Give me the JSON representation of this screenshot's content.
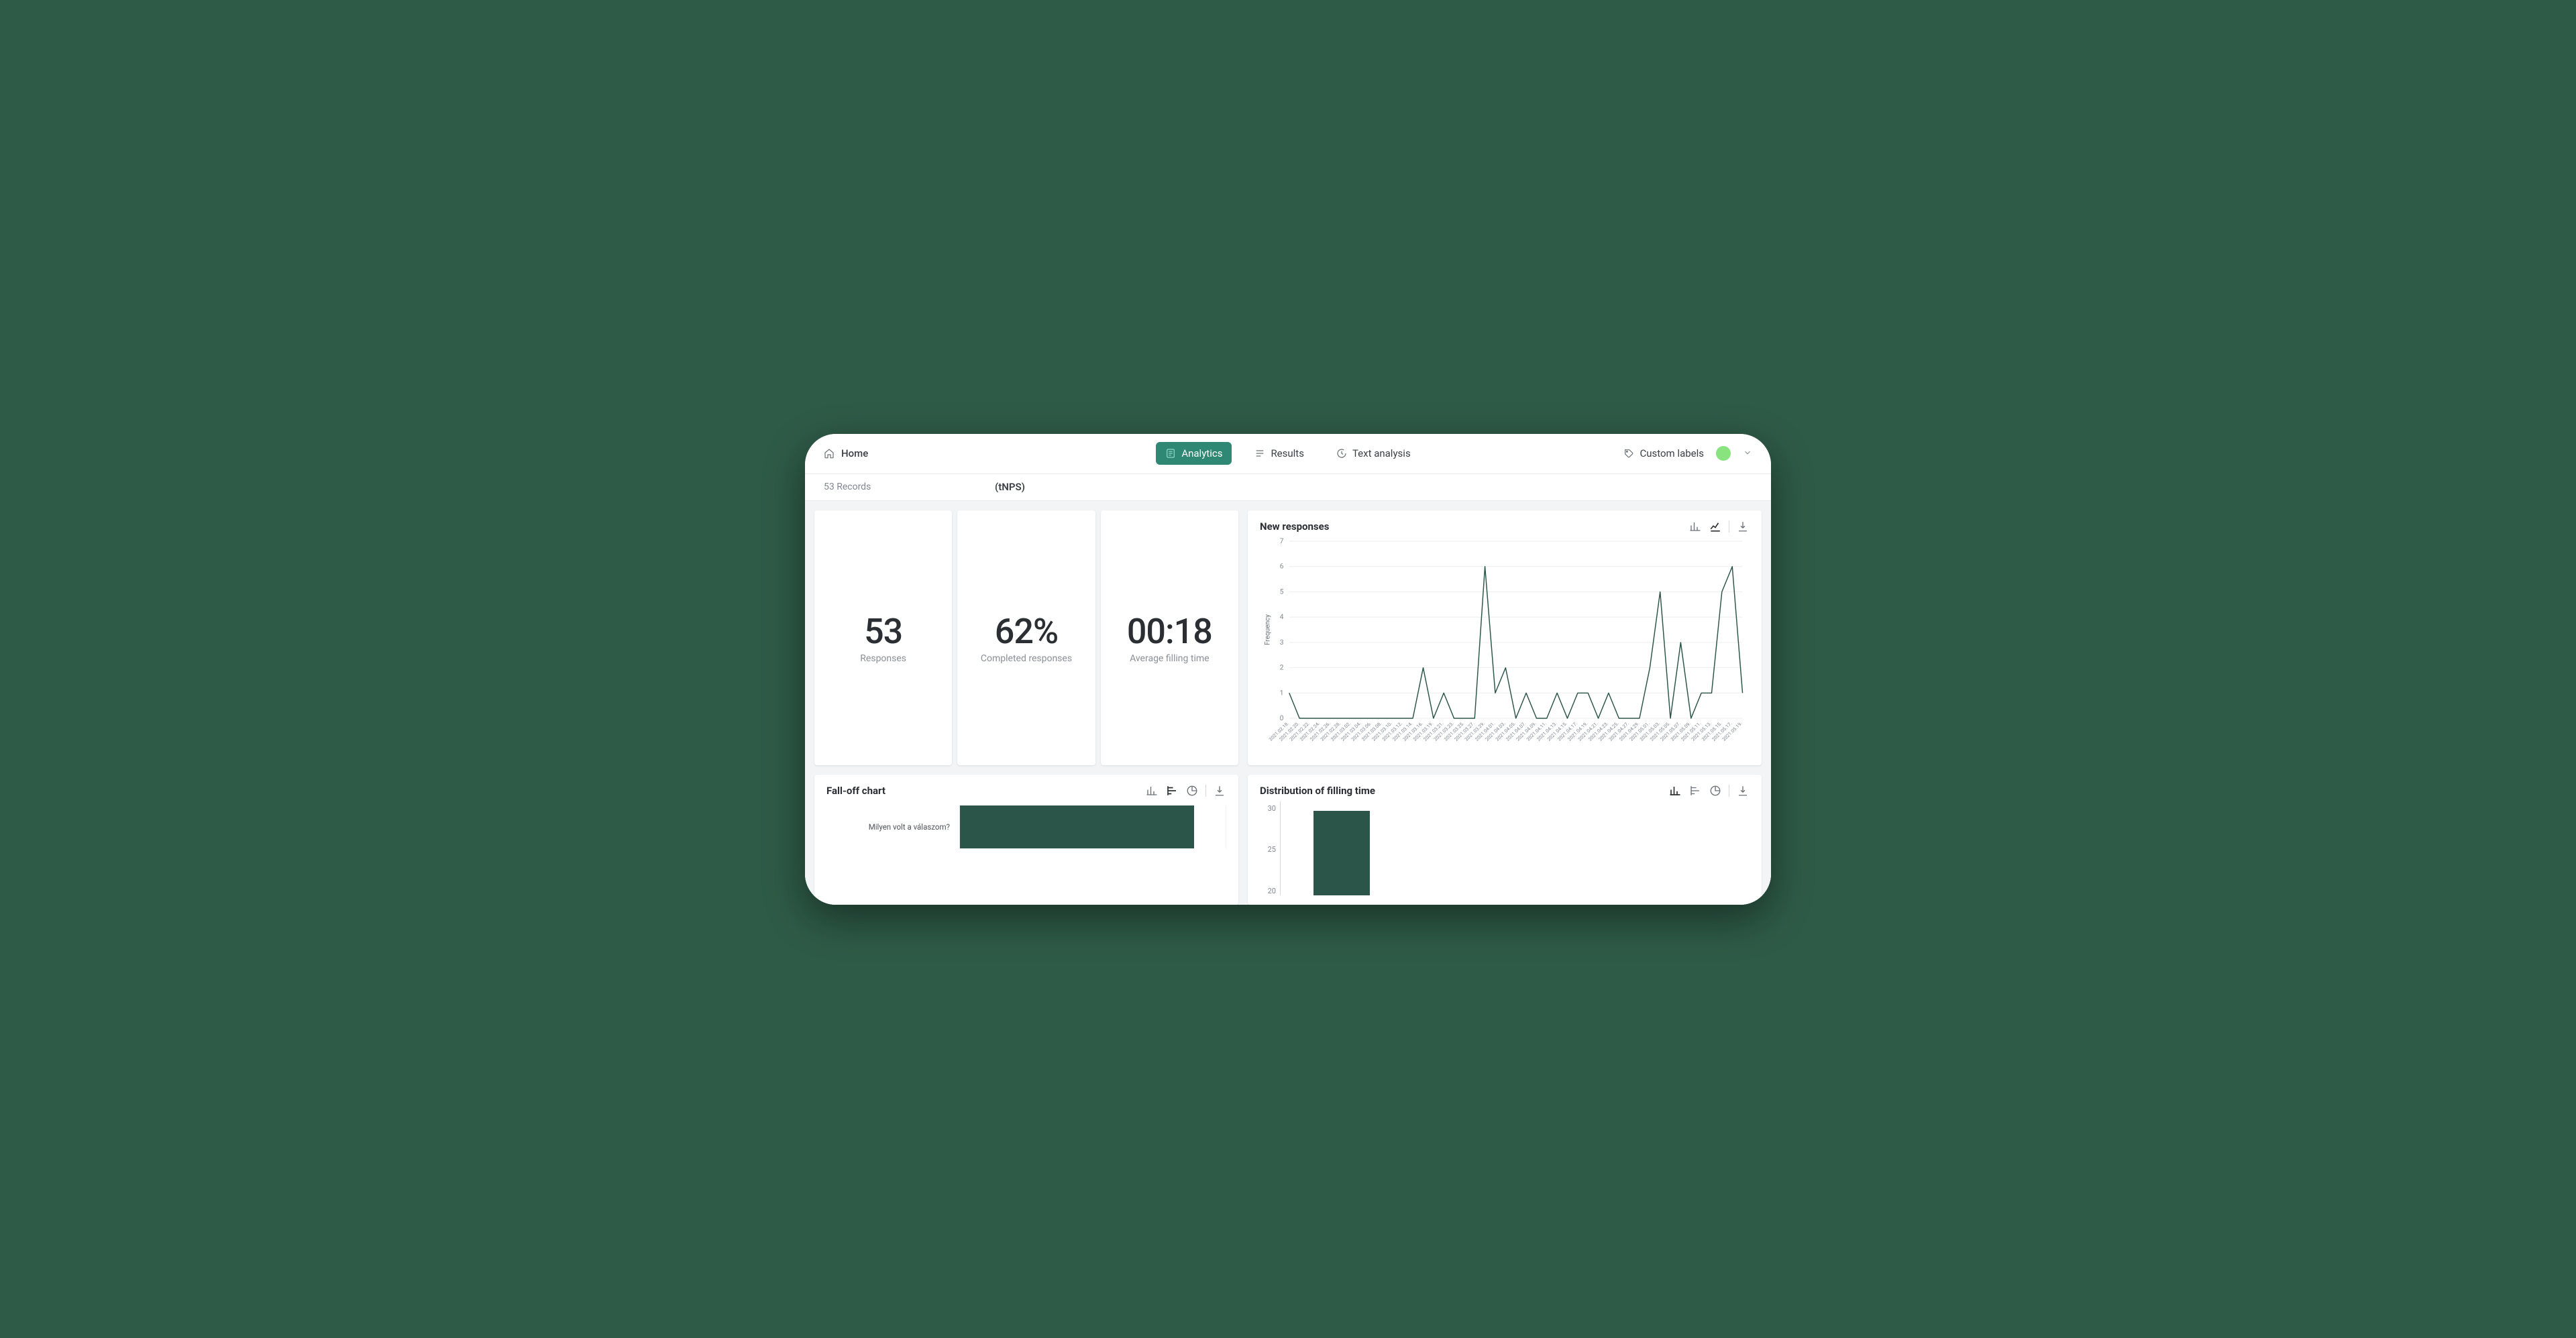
{
  "colors": {
    "accent": "#2f8873",
    "chart_line": "#2c5549",
    "bar_fill": "#2c5549",
    "background": "#ffffff",
    "page_bg": "#f3f4f6",
    "outer_bg": "#2e5b47",
    "text_primary": "#2b2f33",
    "text_secondary": "#8a9096",
    "grid": "#eceeef",
    "avatar": "#89e37f"
  },
  "nav": {
    "home": "Home",
    "tabs": [
      {
        "id": "analytics",
        "label": "Analytics",
        "active": true
      },
      {
        "id": "results",
        "label": "Results",
        "active": false
      },
      {
        "id": "text-analysis",
        "label": "Text analysis",
        "active": false
      }
    ],
    "custom_labels": "Custom labels"
  },
  "subheader": {
    "records": "53 Records",
    "title": "(tNPS)"
  },
  "stats": [
    {
      "value": "53",
      "label": "Responses"
    },
    {
      "value": "62%",
      "label": "Completed responses"
    },
    {
      "value": "00:18",
      "label": "Average filling time"
    }
  ],
  "new_responses": {
    "title": "New responses",
    "y_label": "Frequency",
    "type": "line",
    "ylim": [
      0,
      7
    ],
    "ytick_step": 1,
    "line_color": "#2c5549",
    "line_width": 1.4,
    "x_labels": [
      "2021.02.18.",
      "2021.02.20.",
      "2021.02.22.",
      "2021.02.24.",
      "2021.02.26.",
      "2021.02.28.",
      "2021.03.02.",
      "2021.03.04.",
      "2021.03.06.",
      "2021.03.08.",
      "2021.03.10.",
      "2021.03.12.",
      "2021.03.14.",
      "2021.03.16.",
      "2021.03.19.",
      "2021.03.21.",
      "2021.03.23.",
      "2021.03.25.",
      "2021.03.27.",
      "2021.03.29.",
      "2021.04.01.",
      "2021.04.03.",
      "2021.04.05.",
      "2021.04.07.",
      "2021.04.09.",
      "2021.04.11.",
      "2021.04.13.",
      "2021.04.15.",
      "2021.04.17.",
      "2021.04.19.",
      "2021.04.21.",
      "2021.04.23.",
      "2021.04.25.",
      "2021.04.27.",
      "2021.04.29.",
      "2021.05.01.",
      "2021.05.03.",
      "2021.05.05.",
      "2021.05.07.",
      "2021.05.09.",
      "2021.05.11.",
      "2021.05.13.",
      "2021.05.15.",
      "2021.05.17.",
      "2021.05.19."
    ],
    "values": [
      1,
      0,
      0,
      0,
      0,
      0,
      0,
      0,
      0,
      0,
      0,
      0,
      0,
      2,
      0,
      1,
      0,
      0,
      0,
      6,
      1,
      2,
      0,
      1,
      0,
      0,
      1,
      0,
      1,
      1,
      0,
      1,
      0,
      0,
      0,
      2,
      5,
      0,
      3,
      0,
      1,
      1,
      5,
      6,
      1
    ]
  },
  "falloff": {
    "title": "Fall-off chart",
    "type": "bar-horizontal",
    "bar_color": "#2c5549",
    "rows": [
      {
        "label": "Milyen volt a válaszom?",
        "value_ratio": 0.88
      }
    ]
  },
  "distribution": {
    "title": "Distribution of filling time",
    "type": "bar",
    "bar_color": "#2c5549",
    "ylim": [
      0,
      30
    ],
    "yticks": [
      30,
      25,
      20
    ],
    "bars": [
      {
        "x_ratio": 0.07,
        "width_ratio": 0.12,
        "value": 27
      }
    ]
  }
}
